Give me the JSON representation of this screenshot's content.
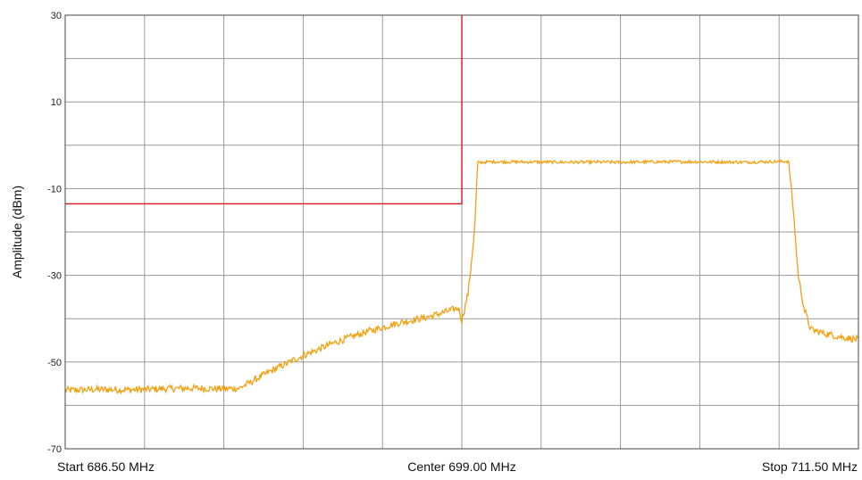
{
  "chart_data": {
    "type": "line",
    "ylabel": "Amplitude (dBm)",
    "ylim": [
      -70,
      30
    ],
    "yticks": [
      30,
      10,
      -10,
      -30,
      -50,
      -70
    ],
    "xlim": [
      686.5,
      711.5
    ],
    "x_unit": "MHz",
    "x_labels": {
      "start": "Start 686.50 MHz",
      "center": "Center 699.00 MHz",
      "stop": "Stop 711.50 MHz"
    },
    "grid": true,
    "series": [
      {
        "color": "#f5a00f",
        "x": [
          686.5,
          687.5,
          688.5,
          689.5,
          690.5,
          691.5,
          692.0,
          693.0,
          694.0,
          695.0,
          696.0,
          697.0,
          698.0,
          698.9,
          699.0,
          699.2,
          699.4,
          699.5,
          700.0,
          702.0,
          704.0,
          706.0,
          708.0,
          709.3,
          709.45,
          709.6,
          709.8,
          710.0,
          710.5,
          711.0,
          711.5
        ],
        "values": [
          -56.5,
          -56.3,
          -56.4,
          -56.2,
          -56.0,
          -56.2,
          -56.0,
          -52.0,
          -48.5,
          -45.5,
          -43.0,
          -41.0,
          -39.5,
          -37.5,
          -40.5,
          -34.0,
          -20.0,
          -4.0,
          -3.8,
          -3.9,
          -3.9,
          -3.8,
          -3.9,
          -3.7,
          -15.0,
          -30.0,
          -38.0,
          -42.5,
          -43.5,
          -44.3,
          -44.8
        ]
      },
      {
        "color": "#e0141e",
        "x": [
          686.5,
          699.0,
          699.0
        ],
        "values": [
          -13.5,
          -13.5,
          30
        ]
      }
    ]
  }
}
